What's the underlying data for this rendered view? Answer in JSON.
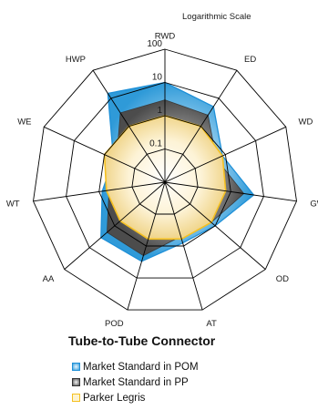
{
  "chart_data": {
    "type": "radar",
    "title": "Tube-to-Tube Connector",
    "scale_note": "Logarithmic Scale",
    "scale": "log",
    "axes": [
      "RWD",
      "ED",
      "WD",
      "GW",
      "OD",
      "AT",
      "POD",
      "AA",
      "WT",
      "WE",
      "HWP"
    ],
    "ticks": [
      "0.1",
      "1",
      "10",
      "100"
    ],
    "range": [
      0.1,
      100
    ],
    "series": [
      {
        "name": "Market Standard in POM",
        "values": [
          10,
          5,
          0.8,
          5,
          1,
          0.8,
          3,
          3.5,
          0.8,
          0.5,
          15
        ]
      },
      {
        "name": "Market Standard in PP",
        "values": [
          3,
          2.5,
          0.5,
          2.5,
          0.7,
          0.5,
          2,
          2,
          0.5,
          0.4,
          3
        ]
      },
      {
        "name": "Parker Legris",
        "values": [
          1,
          1,
          0.8,
          0.7,
          0.7,
          0.6,
          0.6,
          0.6,
          0.6,
          1,
          1
        ]
      }
    ]
  },
  "colors": {
    "pom_fill": "#4aa8e0",
    "pom_stroke": "#1e90d8",
    "pp_dark": "#5a5a5a",
    "parker": "#f5c020",
    "grid": "#000000"
  }
}
